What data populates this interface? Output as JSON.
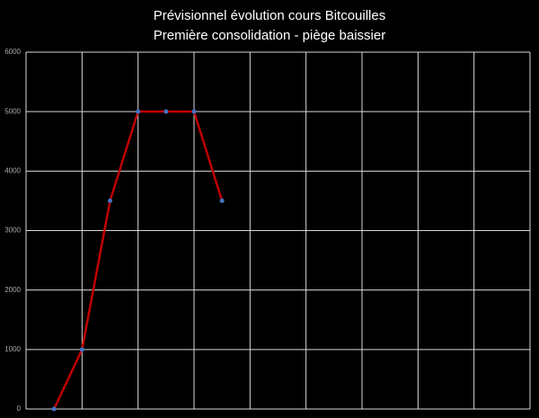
{
  "chart_data": {
    "type": "line",
    "title": "Prévisionnel évolution cours Bitcouilles",
    "subtitle": "Première consolidation - piège baissier",
    "x": [
      1,
      2,
      3,
      4,
      5,
      6,
      7
    ],
    "series": [
      {
        "values": [
          0,
          1000,
          3500,
          5000,
          5000,
          5000,
          3500
        ],
        "color": "#c00000",
        "marker_color": "#4472c4"
      }
    ],
    "xlim": [
      0,
      18
    ],
    "xticks": [
      0,
      2,
      4,
      6,
      8,
      10,
      12,
      14,
      16,
      18
    ],
    "xtick_labels": false,
    "ylim": [
      0,
      6000
    ],
    "yticks": [
      0,
      1000,
      2000,
      3000,
      4000,
      5000,
      6000
    ],
    "grid": true
  }
}
